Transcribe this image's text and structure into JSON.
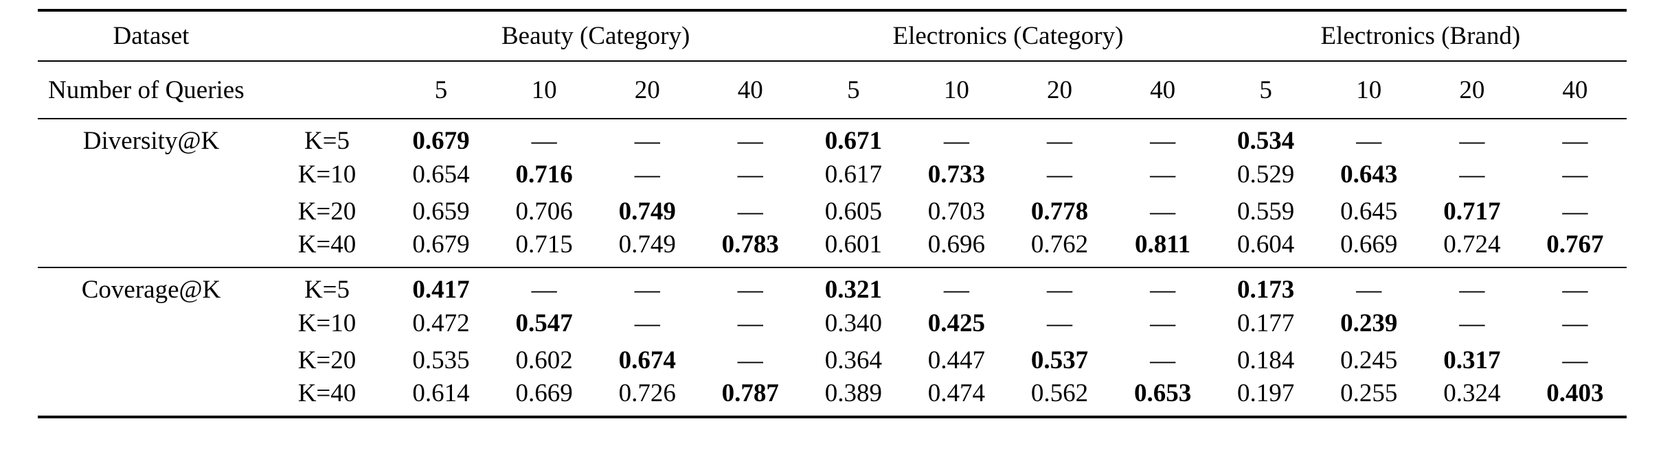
{
  "page": {
    "background": "#ffffff",
    "text_color": "#000000"
  },
  "table": {
    "header": {
      "dataset_label": "Dataset",
      "queries_label": "Number of Queries",
      "groups": [
        "Beauty (Category)",
        "Electronics (Category)",
        "Electronics (Brand)"
      ],
      "query_counts": [
        "5",
        "10",
        "20",
        "40"
      ]
    },
    "sections": [
      {
        "metric": "Diversity@K",
        "rows": [
          {
            "k": "K=5",
            "cells": [
              {
                "v": "0.679",
                "bold": true
              },
              {
                "v": "—"
              },
              {
                "v": "—"
              },
              {
                "v": "—"
              },
              {
                "v": "0.671",
                "bold": true
              },
              {
                "v": "—"
              },
              {
                "v": "—"
              },
              {
                "v": "—"
              },
              {
                "v": "0.534",
                "bold": true
              },
              {
                "v": "—"
              },
              {
                "v": "—"
              },
              {
                "v": "—"
              }
            ]
          },
          {
            "k": "K=10",
            "cells": [
              {
                "v": "0.654"
              },
              {
                "v": "0.716",
                "bold": true
              },
              {
                "v": "—"
              },
              {
                "v": "—"
              },
              {
                "v": "0.617"
              },
              {
                "v": "0.733",
                "bold": true
              },
              {
                "v": "—"
              },
              {
                "v": "—"
              },
              {
                "v": "0.529"
              },
              {
                "v": "0.643",
                "bold": true
              },
              {
                "v": "—"
              },
              {
                "v": "—"
              }
            ]
          },
          {
            "k": "K=20",
            "cells": [
              {
                "v": "0.659"
              },
              {
                "v": "0.706"
              },
              {
                "v": "0.749",
                "bold": true
              },
              {
                "v": "—"
              },
              {
                "v": "0.605"
              },
              {
                "v": "0.703"
              },
              {
                "v": "0.778",
                "bold": true
              },
              {
                "v": "—"
              },
              {
                "v": "0.559"
              },
              {
                "v": "0.645"
              },
              {
                "v": "0.717",
                "bold": true
              },
              {
                "v": "—"
              }
            ]
          },
          {
            "k": "K=40",
            "cells": [
              {
                "v": "0.679"
              },
              {
                "v": "0.715"
              },
              {
                "v": "0.749"
              },
              {
                "v": "0.783",
                "bold": true
              },
              {
                "v": "0.601"
              },
              {
                "v": "0.696"
              },
              {
                "v": "0.762"
              },
              {
                "v": "0.811",
                "bold": true
              },
              {
                "v": "0.604"
              },
              {
                "v": "0.669"
              },
              {
                "v": "0.724"
              },
              {
                "v": "0.767",
                "bold": true
              }
            ]
          }
        ]
      },
      {
        "metric": "Coverage@K",
        "rows": [
          {
            "k": "K=5",
            "cells": [
              {
                "v": "0.417",
                "bold": true
              },
              {
                "v": "—"
              },
              {
                "v": "—"
              },
              {
                "v": "—"
              },
              {
                "v": "0.321",
                "bold": true
              },
              {
                "v": "—"
              },
              {
                "v": "—"
              },
              {
                "v": "—"
              },
              {
                "v": "0.173",
                "bold": true
              },
              {
                "v": "—"
              },
              {
                "v": "—"
              },
              {
                "v": "—"
              }
            ]
          },
          {
            "k": "K=10",
            "cells": [
              {
                "v": "0.472"
              },
              {
                "v": "0.547",
                "bold": true
              },
              {
                "v": "—"
              },
              {
                "v": "—"
              },
              {
                "v": "0.340"
              },
              {
                "v": "0.425",
                "bold": true
              },
              {
                "v": "—"
              },
              {
                "v": "—"
              },
              {
                "v": "0.177"
              },
              {
                "v": "0.239",
                "bold": true
              },
              {
                "v": "—"
              },
              {
                "v": "—"
              }
            ]
          },
          {
            "k": "K=20",
            "cells": [
              {
                "v": "0.535"
              },
              {
                "v": "0.602"
              },
              {
                "v": "0.674",
                "bold": true
              },
              {
                "v": "—"
              },
              {
                "v": "0.364"
              },
              {
                "v": "0.447"
              },
              {
                "v": "0.537",
                "bold": true
              },
              {
                "v": "—"
              },
              {
                "v": "0.184"
              },
              {
                "v": "0.245"
              },
              {
                "v": "0.317",
                "bold": true
              },
              {
                "v": "—"
              }
            ]
          },
          {
            "k": "K=40",
            "cells": [
              {
                "v": "0.614"
              },
              {
                "v": "0.669"
              },
              {
                "v": "0.726"
              },
              {
                "v": "0.787",
                "bold": true
              },
              {
                "v": "0.389"
              },
              {
                "v": "0.474"
              },
              {
                "v": "0.562"
              },
              {
                "v": "0.653",
                "bold": true
              },
              {
                "v": "0.197"
              },
              {
                "v": "0.255"
              },
              {
                "v": "0.324"
              },
              {
                "v": "0.403",
                "bold": true
              }
            ]
          }
        ]
      }
    ]
  }
}
